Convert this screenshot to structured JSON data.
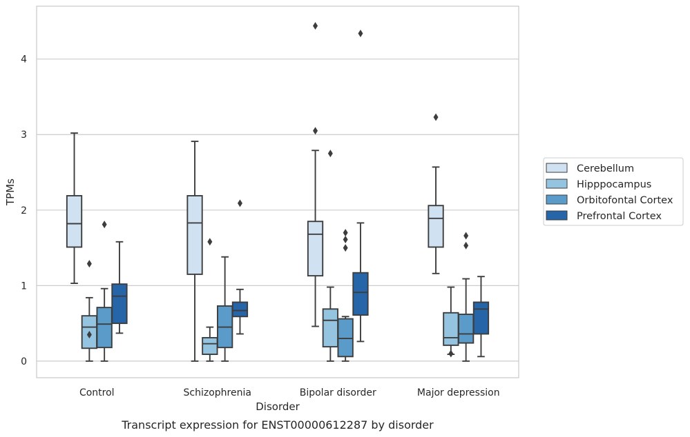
{
  "chart_data": {
    "type": "box",
    "title": "Transcript expression for ENST00000612287 by disorder",
    "xlabel": "Disorder",
    "ylabel": "TPMs",
    "ylim": [
      -0.22,
      4.7
    ],
    "yticks": [
      0,
      1,
      2,
      3,
      4
    ],
    "grid": "horizontal",
    "legend_position": "right",
    "categories": [
      "Control",
      "Schizophrenia",
      "Bipolar disorder",
      "Major depression"
    ],
    "series": [
      {
        "name": "Cerebellum",
        "color": "#d0e1f2",
        "boxes": [
          {
            "whislo": 1.03,
            "q1": 1.51,
            "med": 1.82,
            "q3": 2.19,
            "whishi": 3.02,
            "fliers": []
          },
          {
            "whislo": 0.0,
            "q1": 1.15,
            "med": 1.83,
            "q3": 2.19,
            "whishi": 2.91,
            "fliers": []
          },
          {
            "whislo": 0.46,
            "q1": 1.13,
            "med": 1.68,
            "q3": 1.85,
            "whishi": 2.79,
            "fliers": [
              3.05,
              4.44
            ]
          },
          {
            "whislo": 1.16,
            "q1": 1.51,
            "med": 1.89,
            "q3": 2.06,
            "whishi": 2.57,
            "fliers": [
              3.23
            ]
          }
        ]
      },
      {
        "name": "Hipppocampus",
        "color": "#94c4df",
        "boxes": [
          {
            "whislo": 0.0,
            "q1": 0.17,
            "med": 0.45,
            "q3": 0.6,
            "whishi": 0.84,
            "fliers": [
              0.35,
              1.29
            ]
          },
          {
            "whislo": 0.0,
            "q1": 0.09,
            "med": 0.23,
            "q3": 0.31,
            "whishi": 0.45,
            "fliers": [
              1.58
            ]
          },
          {
            "whislo": 0.0,
            "q1": 0.19,
            "med": 0.54,
            "q3": 0.69,
            "whishi": 0.98,
            "fliers": [
              2.75
            ]
          },
          {
            "whislo": 0.09,
            "q1": 0.21,
            "med": 0.31,
            "q3": 0.64,
            "whishi": 0.98,
            "fliers": [
              0.1
            ]
          }
        ]
      },
      {
        "name": "Orbitofontal Cortex",
        "color": "#5b9bc9",
        "boxes": [
          {
            "whislo": 0.0,
            "q1": 0.18,
            "med": 0.49,
            "q3": 0.71,
            "whishi": 0.96,
            "fliers": [
              1.81
            ]
          },
          {
            "whislo": 0.0,
            "q1": 0.18,
            "med": 0.45,
            "q3": 0.73,
            "whishi": 1.38,
            "fliers": []
          },
          {
            "whislo": 0.0,
            "q1": 0.06,
            "med": 0.3,
            "q3": 0.56,
            "whishi": 0.59,
            "fliers": [
              1.5,
              1.61,
              1.7
            ]
          },
          {
            "whislo": 0.0,
            "q1": 0.24,
            "med": 0.36,
            "q3": 0.62,
            "whishi": 1.09,
            "fliers": [
              1.53,
              1.66
            ]
          }
        ]
      },
      {
        "name": "Prefrontal Cortex",
        "color": "#2665a8",
        "boxes": [
          {
            "whislo": 0.37,
            "q1": 0.5,
            "med": 0.86,
            "q3": 1.02,
            "whishi": 1.58,
            "fliers": []
          },
          {
            "whislo": 0.36,
            "q1": 0.59,
            "med": 0.67,
            "q3": 0.78,
            "whishi": 0.95,
            "fliers": [
              2.09
            ]
          },
          {
            "whislo": 0.26,
            "q1": 0.61,
            "med": 0.91,
            "q3": 1.17,
            "whishi": 1.83,
            "fliers": [
              4.34
            ]
          },
          {
            "whislo": 0.06,
            "q1": 0.36,
            "med": 0.69,
            "q3": 0.78,
            "whishi": 1.12,
            "fliers": []
          }
        ]
      }
    ]
  }
}
